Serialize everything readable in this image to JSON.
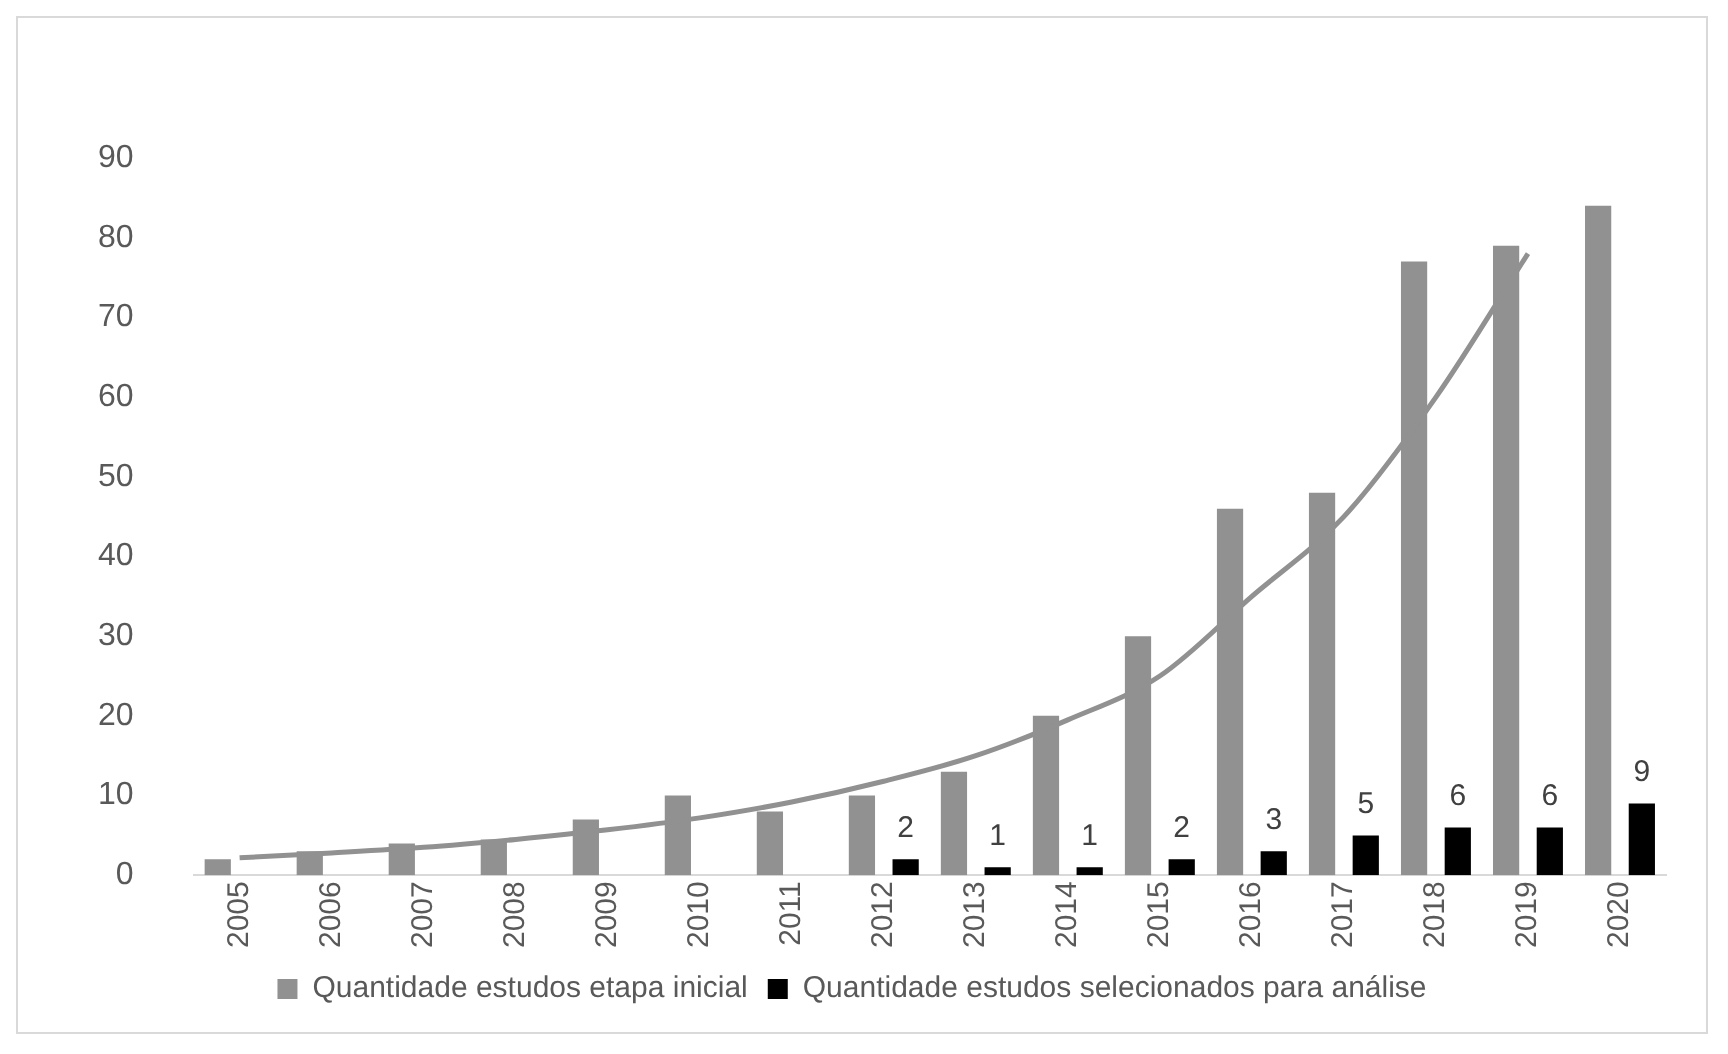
{
  "chart_data": {
    "type": "bar",
    "categories": [
      "2005",
      "2006",
      "2007",
      "2008",
      "2009",
      "2010",
      "2011",
      "2012",
      "2013",
      "2014",
      "2015",
      "2016",
      "2017",
      "2018",
      "2019",
      "2020"
    ],
    "series": [
      {
        "name": "Quantidade estudos etapa inicial",
        "color": "#919191",
        "values": [
          2,
          3,
          4,
          4.5,
          7,
          10,
          8,
          10,
          13,
          20,
          30,
          46,
          48,
          77,
          79,
          84
        ]
      },
      {
        "name": "Quantidade estudos selecionados para análise",
        "color": "#000000",
        "values": [
          null,
          null,
          null,
          null,
          null,
          null,
          null,
          2,
          1,
          1,
          2,
          3,
          5,
          6,
          6,
          9
        ],
        "value_labels": [
          null,
          null,
          null,
          null,
          null,
          null,
          null,
          "2",
          "1",
          "1",
          "2",
          "3",
          "5",
          "6",
          "6",
          "9"
        ]
      },
      {
        "type": "line",
        "color": "#919191",
        "values": [
          2.2,
          2.8,
          3.5,
          4.5,
          5.7,
          7.2,
          9.2,
          11.8,
          15,
          19.5,
          25,
          35,
          45,
          60,
          78,
          null
        ]
      }
    ],
    "ylim": [
      0,
      90
    ],
    "yticks": [
      0,
      10,
      20,
      30,
      40,
      50,
      60,
      70,
      80,
      90
    ],
    "grid": false,
    "legend": "bottom"
  }
}
